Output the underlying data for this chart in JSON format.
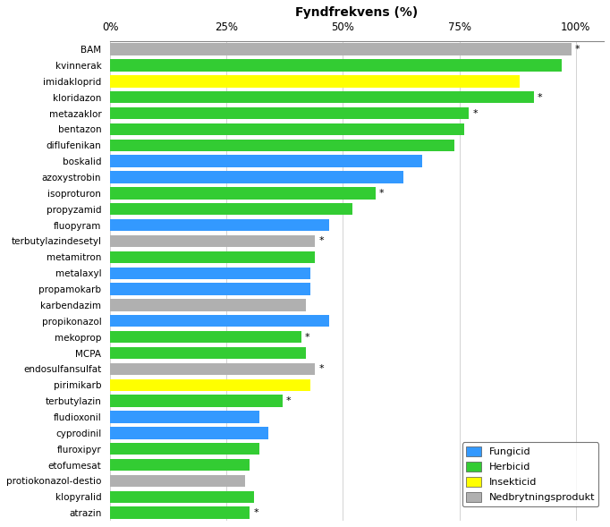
{
  "title": "Fyndfrekvens (%)",
  "substances": [
    "BAM",
    "kvinnerak",
    "imidakloprid",
    "kloridazon",
    "metazaklor",
    "bentazon",
    "diflufenikan",
    "boskalid",
    "azoxystrobin",
    "isoproturon",
    "propyzamid",
    "fluopyram",
    "terbutylazindesetyl",
    "metamitron",
    "metalaxyl",
    "propamokarb",
    "karbendazim",
    "propikonazol",
    "mekoprop",
    "MCPA",
    "endosulfansulfat",
    "pirimikarb",
    "terbutylazin",
    "fludioxonil",
    "cyprodinil",
    "fluroxipyr",
    "etofumesat",
    "protiokonazol-destio",
    "klopyralid",
    "atrazin"
  ],
  "values": [
    99,
    97,
    88,
    91,
    77,
    76,
    74,
    67,
    63,
    57,
    52,
    47,
    44,
    44,
    43,
    43,
    42,
    47,
    41,
    42,
    44,
    43,
    37,
    32,
    34,
    32,
    30,
    29,
    31,
    30
  ],
  "colors": [
    "#b0b0b0",
    "#33cc33",
    "#ffff00",
    "#33cc33",
    "#33cc33",
    "#33cc33",
    "#33cc33",
    "#3399ff",
    "#3399ff",
    "#33cc33",
    "#33cc33",
    "#3399ff",
    "#b0b0b0",
    "#33cc33",
    "#3399ff",
    "#3399ff",
    "#b0b0b0",
    "#3399ff",
    "#33cc33",
    "#33cc33",
    "#b0b0b0",
    "#ffff00",
    "#33cc33",
    "#3399ff",
    "#3399ff",
    "#33cc33",
    "#33cc33",
    "#b0b0b0",
    "#33cc33",
    "#33cc33"
  ],
  "asterisks": [
    true,
    false,
    false,
    true,
    true,
    false,
    false,
    false,
    false,
    true,
    false,
    false,
    true,
    false,
    false,
    false,
    false,
    false,
    true,
    false,
    true,
    false,
    true,
    false,
    false,
    false,
    false,
    false,
    false,
    true
  ],
  "fungicid_color": "#3399ff",
  "herbicid_color": "#33cc33",
  "insekticid_color": "#ffff00",
  "nedbrytningsprodukt_color": "#b0b0b0",
  "xticks": [
    0,
    25,
    50,
    75,
    100
  ],
  "xlim": [
    0,
    106
  ],
  "background_color": "#ffffff"
}
